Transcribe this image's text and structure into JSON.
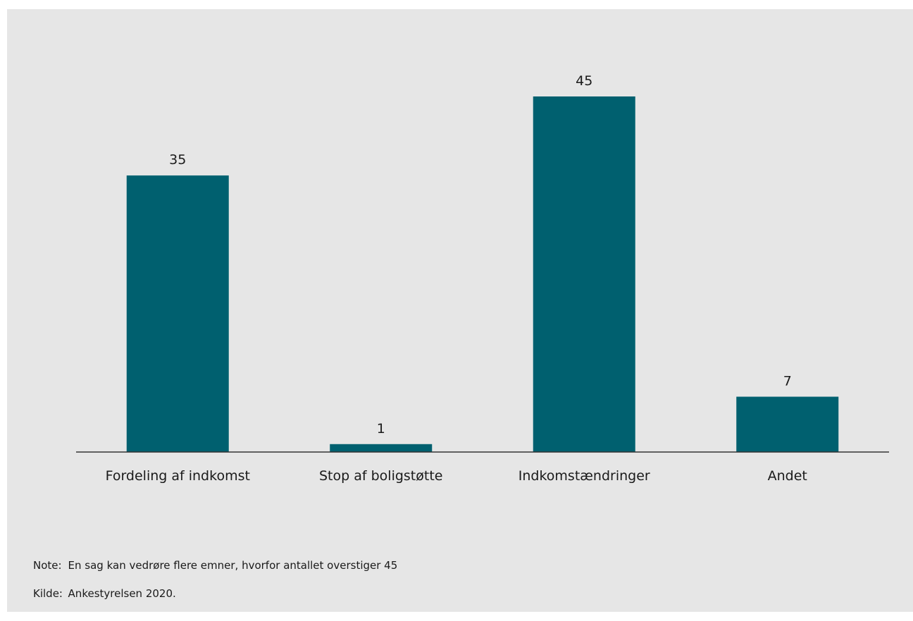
{
  "chart_data": {
    "type": "bar",
    "categories": [
      "Fordeling af indkomst",
      "Stop af boligstøtte",
      "Indkomstændringer",
      "Andet"
    ],
    "values": [
      35,
      1,
      45,
      7
    ],
    "title": "",
    "xlabel": "",
    "ylabel": "",
    "ylim": [
      0,
      45
    ],
    "grid": false,
    "legend": "none",
    "bar_color": "#00606f",
    "background_color": "#e6e6e6",
    "data_labels": true
  },
  "footnotes": {
    "note_key": "Note:",
    "note_text": "En sag kan vedrøre flere emner, hvorfor antallet overstiger 45",
    "source_key": "Kilde:",
    "source_text": "Ankestyrelsen 2020."
  }
}
